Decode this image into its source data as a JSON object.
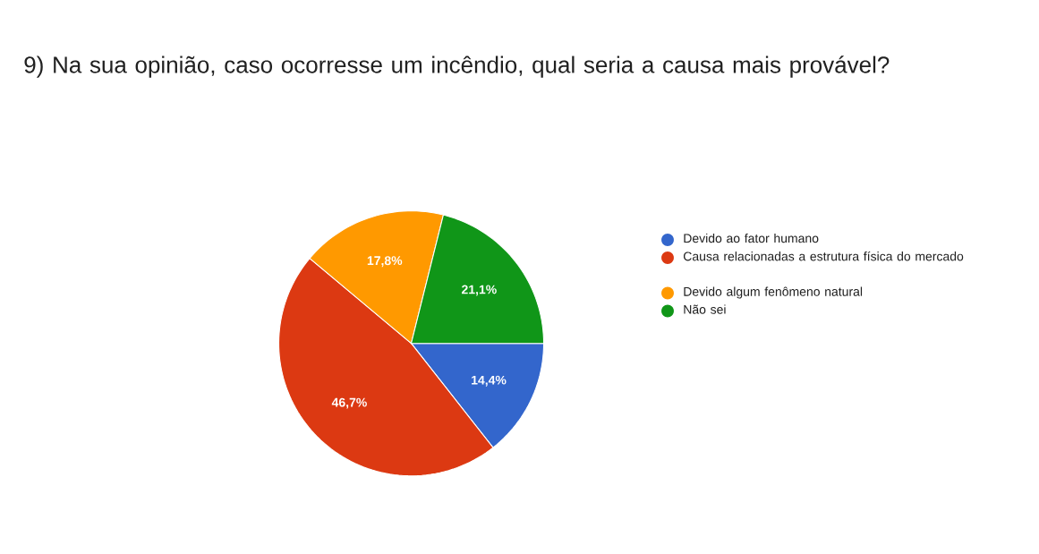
{
  "chart_data": {
    "type": "pie",
    "title": "9) Na sua opinião, caso ocorresse um incêndio, qual seria a causa mais provável?",
    "categories": [
      "Devido ao fator humano",
      "Causa relacionadas a estrutura física do mercado",
      "Devido algum fenômeno natural",
      "Não sei"
    ],
    "values": [
      14.4,
      46.7,
      17.8,
      21.1
    ],
    "value_labels": [
      "14,4%",
      "46,7%",
      "17,8%",
      "21,1%"
    ],
    "colors": [
      "#3366cc",
      "#dc3912",
      "#ff9900",
      "#109618"
    ],
    "legend": "right"
  }
}
